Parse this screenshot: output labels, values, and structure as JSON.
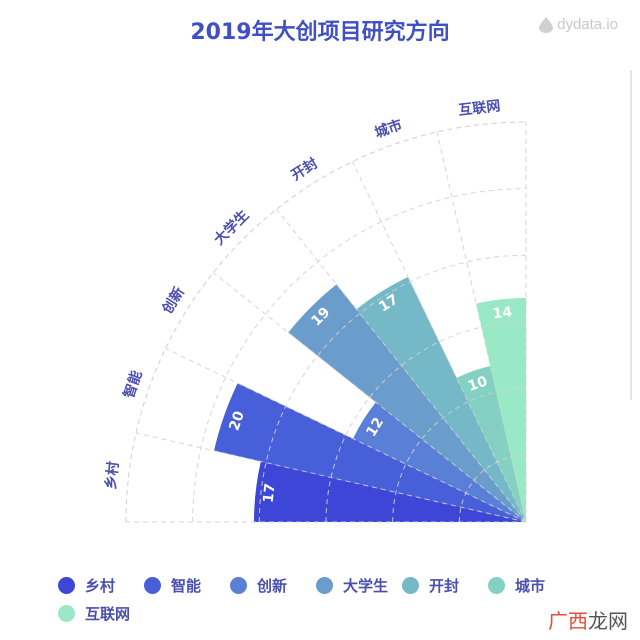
{
  "title": "2019年大创项目研究方向",
  "logo_text": "dydata.io",
  "watermark": {
    "part1": "广西",
    "part2": "龙网"
  },
  "chart_data": {
    "type": "polar-bar",
    "categories": [
      "乡村",
      "智能",
      "创新",
      "大学生",
      "开封",
      "城市",
      "互联网"
    ],
    "values": [
      17,
      20,
      12,
      19,
      17,
      10,
      14
    ],
    "rmax": 25,
    "grid": true,
    "legend_position": "bottom",
    "colors": [
      "#3d46d6",
      "#4760d9",
      "#5a7fd6",
      "#6a9dcb",
      "#75b8c8",
      "#84d0c3",
      "#9ae9c6"
    ]
  },
  "legend": [
    {
      "label": "乡村",
      "color": "#3d46d6"
    },
    {
      "label": "智能",
      "color": "#4760d9"
    },
    {
      "label": "创新",
      "color": "#5a7fd6"
    },
    {
      "label": "大学生",
      "color": "#6a9dcb"
    },
    {
      "label": "开封",
      "color": "#75b8c8"
    },
    {
      "label": "城市",
      "color": "#84d0c3"
    },
    {
      "label": "互联网",
      "color": "#9ae9c6"
    }
  ]
}
